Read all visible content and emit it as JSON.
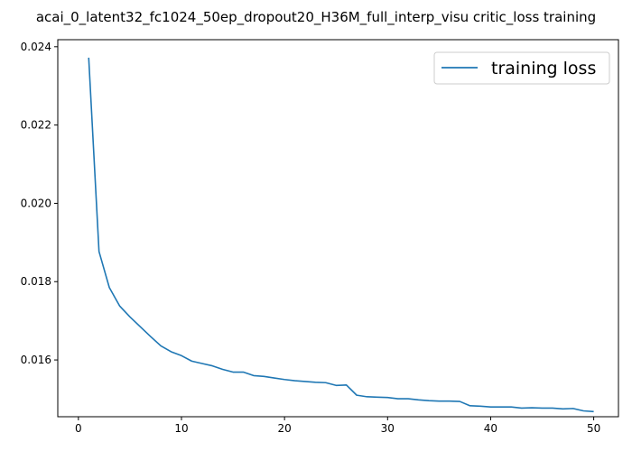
{
  "chart_data": {
    "type": "line",
    "title": "acai_0_latent32_fc1024_50ep_dropout20_H36M_full_interp_visu critic_loss training",
    "xlabel": "",
    "ylabel": "",
    "xlim": [
      -2.0,
      52.4
    ],
    "ylim": [
      0.01455,
      0.02418
    ],
    "xticks": [
      0,
      10,
      20,
      30,
      40,
      50
    ],
    "yticks": [
      0.016,
      0.018,
      0.02,
      0.022,
      0.024
    ],
    "ytick_labels": [
      "0.016",
      "0.018",
      "0.020",
      "0.022",
      "0.024"
    ],
    "grid": false,
    "legend_position": "top-right",
    "series": [
      {
        "name": "training loss",
        "color": "#1f77b4",
        "x": [
          1,
          2,
          3,
          4,
          5,
          6,
          7,
          8,
          9,
          10,
          11,
          12,
          13,
          14,
          15,
          16,
          17,
          18,
          19,
          20,
          21,
          22,
          23,
          24,
          25,
          26,
          27,
          28,
          29,
          30,
          31,
          32,
          33,
          34,
          35,
          36,
          37,
          38,
          39,
          40,
          41,
          42,
          43,
          44,
          45,
          46,
          47,
          48,
          49,
          50
        ],
        "y": [
          0.02372,
          0.01877,
          0.01785,
          0.01738,
          0.0171,
          0.01685,
          0.0166,
          0.01636,
          0.01621,
          0.01611,
          0.01597,
          0.01591,
          0.01585,
          0.01576,
          0.01569,
          0.01569,
          0.0156,
          0.01558,
          0.01554,
          0.0155,
          0.01547,
          0.01545,
          0.01543,
          0.01542,
          0.01535,
          0.01536,
          0.0151,
          0.01506,
          0.01505,
          0.01504,
          0.01501,
          0.01501,
          0.01498,
          0.01496,
          0.01495,
          0.01495,
          0.01494,
          0.01483,
          0.01482,
          0.0148,
          0.0148,
          0.0148,
          0.01477,
          0.01478,
          0.01477,
          0.01477,
          0.01475,
          0.01476,
          0.0147,
          0.01468
        ]
      }
    ]
  }
}
